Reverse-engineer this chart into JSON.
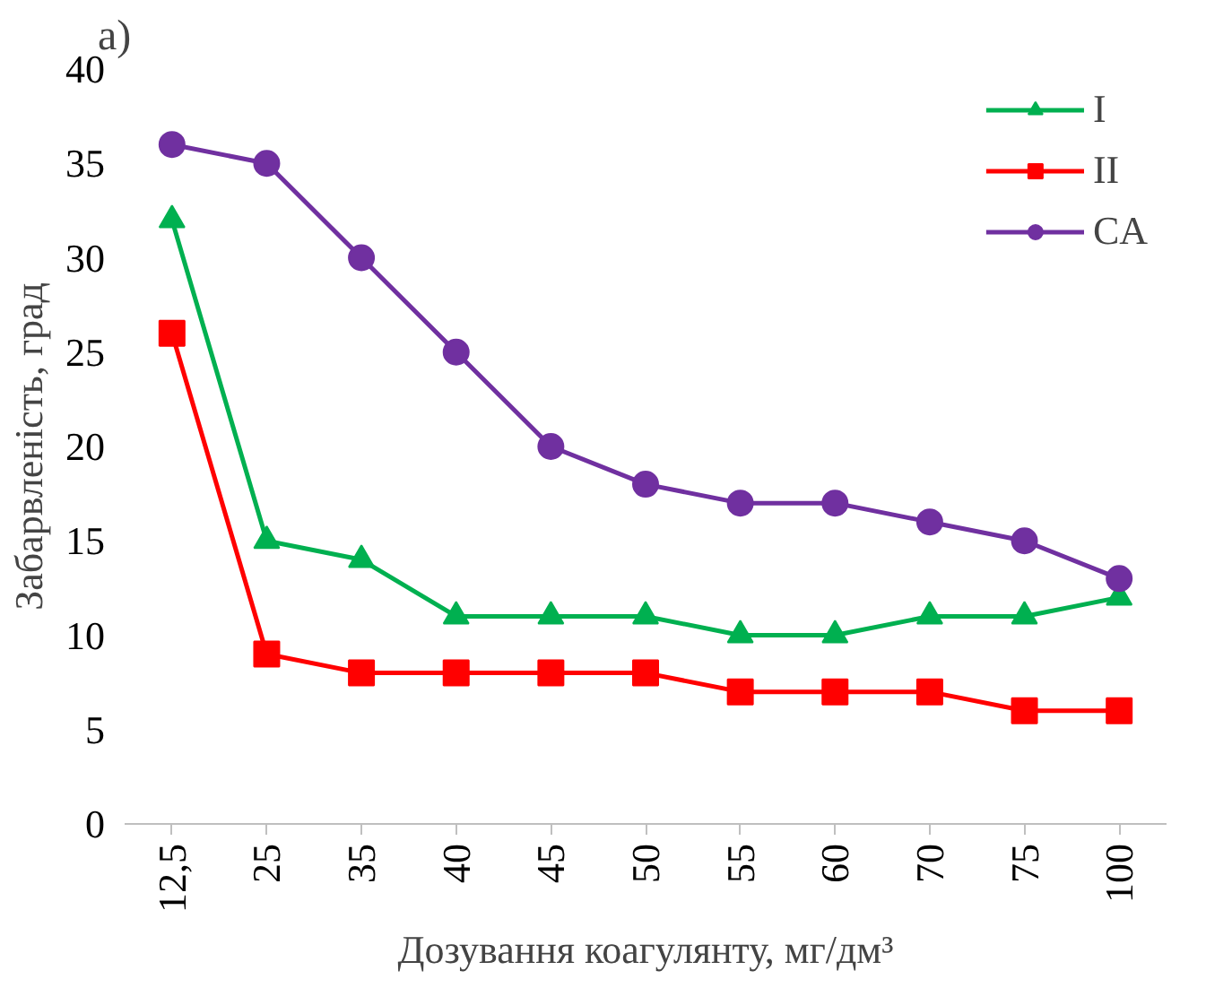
{
  "chart_data": {
    "type": "line",
    "title": "a)",
    "xlabel": "Дозування коагулянту, мг/дм³",
    "ylabel": "Забарвленість, град",
    "categories": [
      "12,5",
      "25",
      "35",
      "40",
      "45",
      "50",
      "55",
      "60",
      "70",
      "75",
      "100"
    ],
    "series": [
      {
        "name": "I",
        "color": "#00b050",
        "marker": "triangle",
        "values": [
          32,
          15,
          14,
          11,
          11,
          11,
          10,
          10,
          11,
          11,
          12
        ]
      },
      {
        "name": "II",
        "color": "#ff0000",
        "marker": "square",
        "values": [
          26,
          9,
          8,
          8,
          8,
          8,
          7,
          7,
          7,
          6,
          6
        ]
      },
      {
        "name": "CA",
        "color": "#7030a0",
        "marker": "circle",
        "values": [
          36,
          35,
          30,
          25,
          20,
          18,
          17,
          17,
          16,
          15,
          13
        ]
      }
    ],
    "ylim": [
      0,
      40
    ],
    "yticks": [
      0,
      5,
      10,
      15,
      20,
      25,
      30,
      35,
      40
    ],
    "grid": false,
    "legend": "top right",
    "line_style": "solid"
  }
}
